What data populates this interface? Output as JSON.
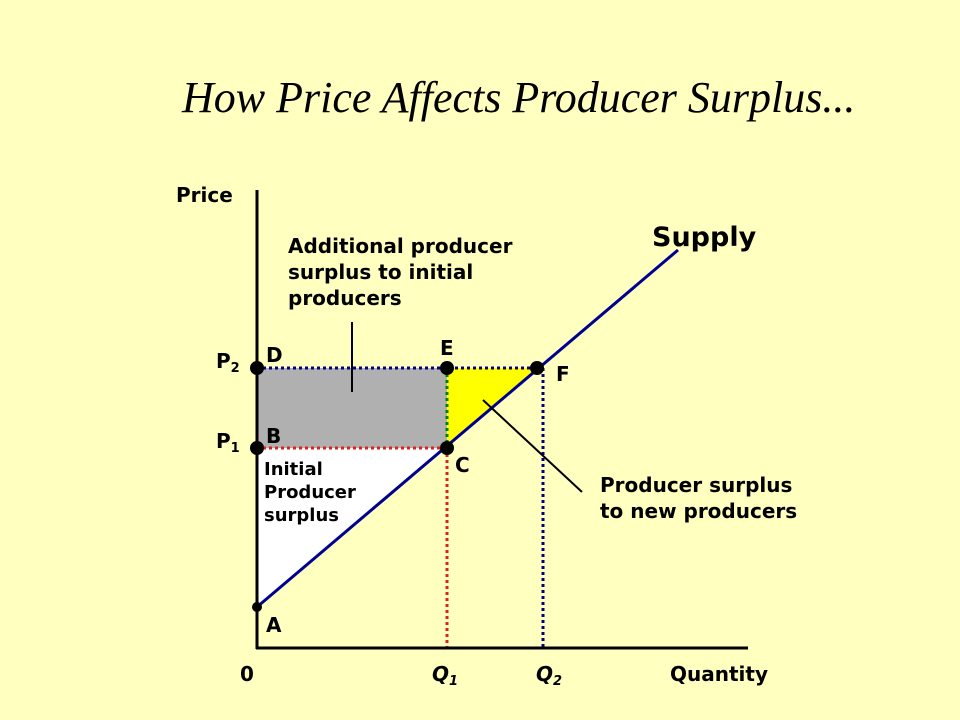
{
  "title": "How Price Affects Producer Surplus...",
  "axes": {
    "y_label": "Price",
    "x_label": "Quantity",
    "origin": "0"
  },
  "quantities": [
    {
      "main": "Q",
      "sub": "1"
    },
    {
      "main": "Q",
      "sub": "2"
    }
  ],
  "prices": [
    {
      "main": "P",
      "sub": "1"
    },
    {
      "main": "P",
      "sub": "2"
    }
  ],
  "points": [
    "A",
    "B",
    "C",
    "D",
    "E",
    "F"
  ],
  "curve_label": "Supply",
  "annotations": {
    "additional": [
      "Additional producer",
      "surplus to initial",
      "producers"
    ],
    "initial": [
      "Initial",
      "Producer",
      "surplus"
    ],
    "new": [
      "Producer surplus",
      "to new producers"
    ]
  }
}
